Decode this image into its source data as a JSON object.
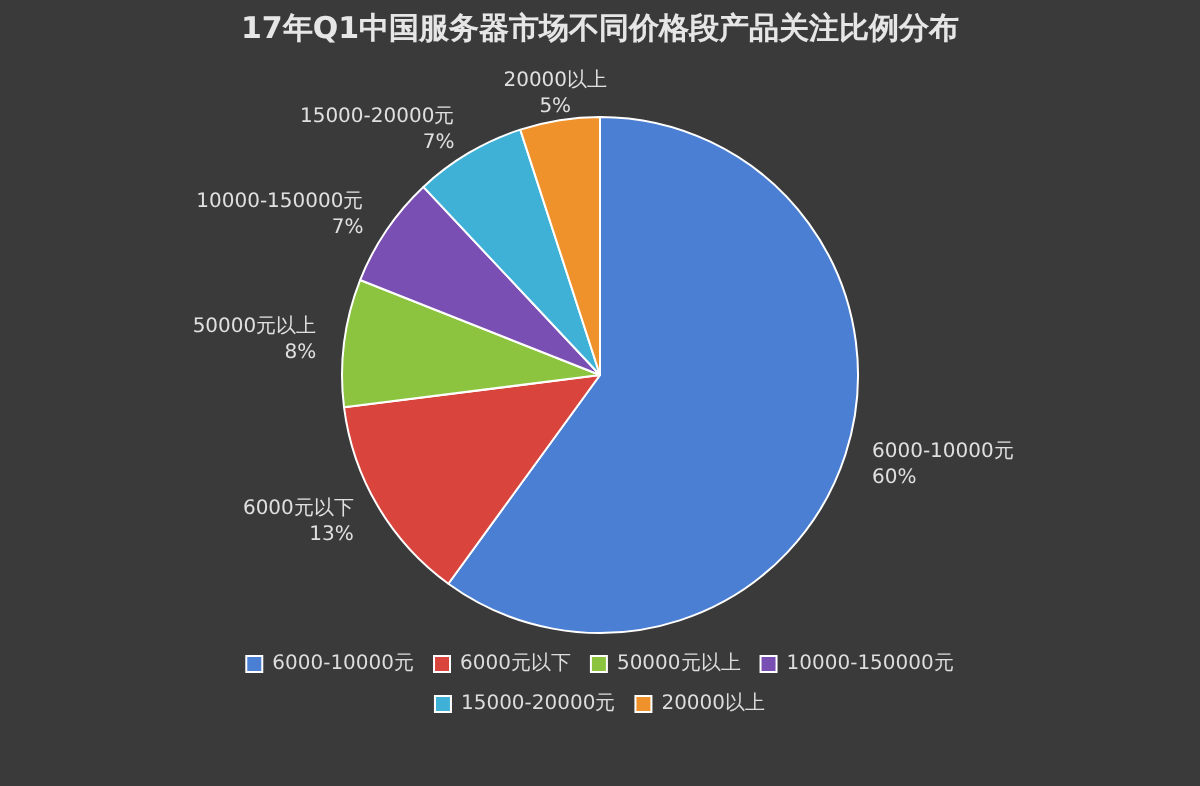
{
  "chart_data": {
    "type": "pie",
    "title": "17年Q1中国服务器市场不同价格段产品关注比例分布",
    "categories": [
      "6000-10000元",
      "6000元以下",
      "50000元以上",
      "10000-150000元",
      "15000-20000元",
      "20000以上"
    ],
    "values": [
      60,
      13,
      8,
      7,
      7,
      5
    ],
    "value_labels": [
      "60%",
      "13%",
      "8%",
      "7%",
      "7%",
      "5%"
    ],
    "colors": [
      "#4a7fd4",
      "#d9453d",
      "#8cc43f",
      "#7a4fb3",
      "#3fb1d6",
      "#f0922c"
    ],
    "legend": "bottom"
  }
}
